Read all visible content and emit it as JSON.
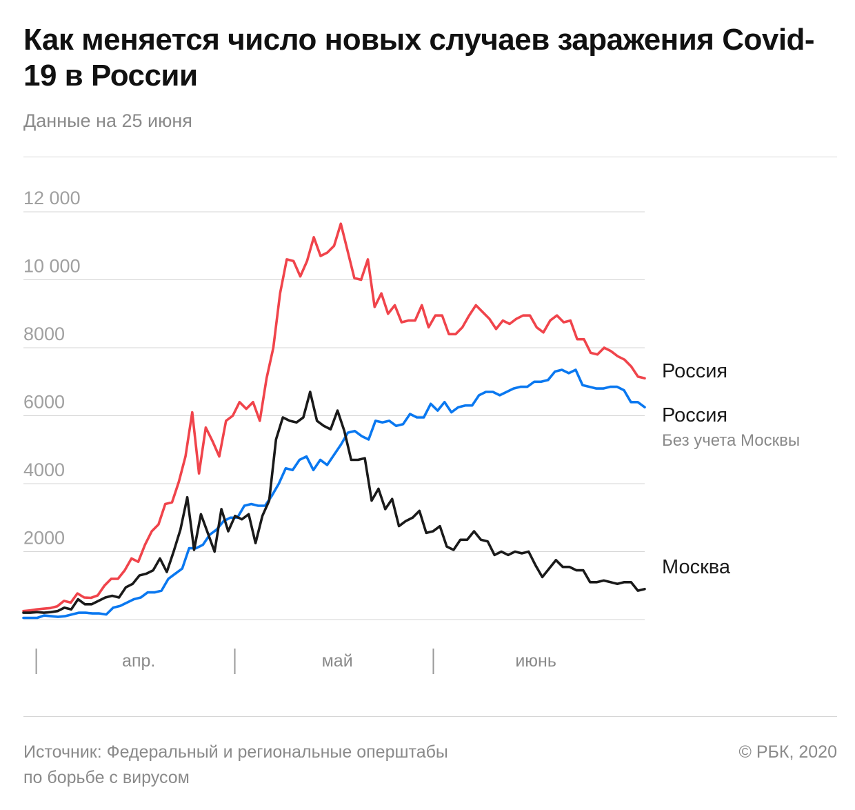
{
  "header": {
    "title": "Как меняется число новых случаев заражения Covid-19 в России",
    "subtitle": "Данные на 25 июня"
  },
  "footer": {
    "source_line1": "Источник: Федеральный и региональные оперштабы",
    "source_line2": "по борьбе с вирусом",
    "copyright": "© РБК, 2020"
  },
  "chart_data": {
    "type": "line",
    "title": "Как меняется число новых случаев заражения Covid-19 в России",
    "subtitle": "Данные на 25 июня",
    "ylim": [
      0,
      12000
    ],
    "yticks": [
      2000,
      4000,
      6000,
      8000,
      10000,
      12000
    ],
    "ytick_labels": [
      "2000",
      "4000",
      "6000",
      "8000",
      "10 000",
      "12 000"
    ],
    "x_start": "2020-03-20",
    "x_end": "2020-06-25",
    "month_labels": [
      "апр.",
      "май",
      "июнь"
    ],
    "grid": true,
    "legend": "inline-right",
    "series": [
      {
        "name": "Россия",
        "color": "#f0444b",
        "values": [
          250,
          270,
          300,
          320,
          340,
          390,
          550,
          500,
          770,
          650,
          640,
          710,
          1000,
          1200,
          1200,
          1450,
          1800,
          1700,
          2200,
          2600,
          2800,
          3400,
          3450,
          4050,
          4800,
          6100,
          4300,
          5650,
          5250,
          4800,
          5850,
          6000,
          6400,
          6200,
          6400,
          5850,
          7100,
          8000,
          9600,
          10600,
          10550,
          10100,
          10550,
          11250,
          10700,
          10800,
          11000,
          11650,
          10850,
          10050,
          10000,
          10600,
          9200,
          9600,
          9000,
          9250,
          8750,
          8800,
          8800,
          9250,
          8600,
          8950,
          8950,
          8400,
          8400,
          8600,
          8950,
          9250,
          9050,
          8850,
          8550,
          8800,
          8700,
          8850,
          8950,
          8950,
          8600,
          8450,
          8800,
          8950,
          8750,
          8800,
          8250,
          8250,
          7850,
          7800,
          8000,
          7900,
          7750,
          7650,
          7450,
          7150,
          7100
        ]
      },
      {
        "name": "Россия",
        "note": "Без учета Москвы",
        "color": "#0a78f0",
        "values": [
          50,
          50,
          50,
          120,
          100,
          80,
          100,
          150,
          200,
          200,
          180,
          180,
          150,
          350,
          400,
          500,
          600,
          650,
          800,
          800,
          850,
          1200,
          1350,
          1500,
          2100,
          2100,
          2200,
          2500,
          2650,
          2900,
          3000,
          3000,
          3350,
          3400,
          3350,
          3350,
          3650,
          4000,
          4450,
          4400,
          4700,
          4800,
          4400,
          4700,
          4550,
          4850,
          5150,
          5500,
          5550,
          5400,
          5300,
          5850,
          5800,
          5850,
          5700,
          5750,
          6050,
          5950,
          5950,
          6350,
          6150,
          6400,
          6100,
          6250,
          6300,
          6300,
          6600,
          6700,
          6700,
          6600,
          6700,
          6800,
          6850,
          6850,
          7000,
          7000,
          7050,
          7300,
          7350,
          7250,
          7350,
          6900,
          6850,
          6800,
          6800,
          6850,
          6850,
          6750,
          6400,
          6400,
          6250
        ]
      },
      {
        "name": "Москва",
        "color": "#1a1a1a",
        "values": [
          200,
          200,
          220,
          200,
          220,
          250,
          350,
          300,
          600,
          450,
          450,
          550,
          650,
          700,
          650,
          950,
          1050,
          1300,
          1350,
          1450,
          1800,
          1400,
          2000,
          2650,
          3600,
          2050,
          3100,
          2550,
          2000,
          3250,
          2600,
          3050,
          2950,
          3100,
          2250,
          3050,
          3500,
          5300,
          5950,
          5850,
          5800,
          5950,
          6700,
          5850,
          5700,
          5600,
          6150,
          5550,
          4700,
          4700,
          4750,
          3500,
          3850,
          3250,
          3550,
          2750,
          2900,
          3000,
          3200,
          2550,
          2600,
          2750,
          2150,
          2050,
          2350,
          2350,
          2600,
          2350,
          2300,
          1900,
          2000,
          1900,
          2000,
          1950,
          2000,
          1600,
          1250,
          1500,
          1750,
          1550,
          1550,
          1450,
          1450,
          1100,
          1100,
          1150,
          1100,
          1050,
          1100,
          1100,
          850,
          900
        ]
      }
    ]
  }
}
